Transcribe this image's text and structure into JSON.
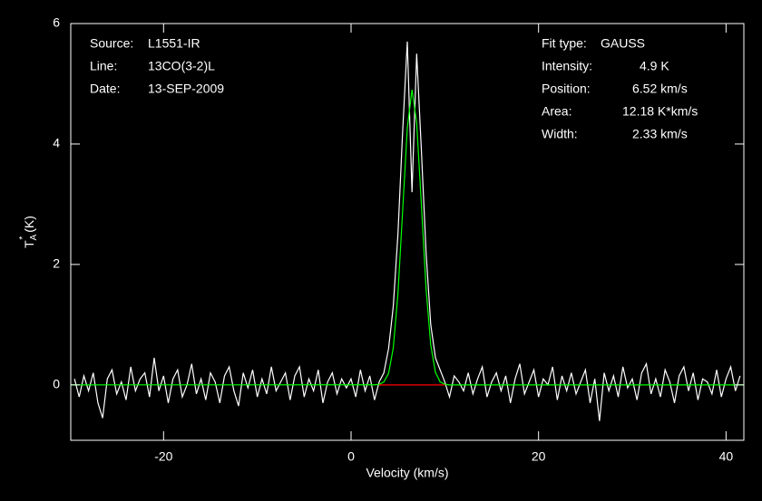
{
  "chart_data": {
    "type": "line",
    "xlabel": "Velocity (km/s)",
    "ylabel": {
      "main": "T",
      "sub": "A",
      "sup": "*",
      "unit": "(K)"
    },
    "xlim": [
      -29.9,
      41.9
    ],
    "ylim": [
      -0.92,
      6
    ],
    "xticks": [
      -20,
      0,
      20,
      40
    ],
    "yticks": [
      0,
      2,
      4,
      6
    ],
    "annotations_left": [
      {
        "label": "Source:",
        "value": "L1551-IR"
      },
      {
        "label": "Line:",
        "value": "13CO(3-2)L"
      },
      {
        "label": "Date:",
        "value": "13-SEP-2009"
      }
    ],
    "annotations_right": [
      {
        "label": "Fit type:",
        "value": "GAUSS"
      },
      {
        "label": "Intensity:",
        "value": "4.9 K"
      },
      {
        "label": "Position:",
        "value": "6.52 km/s"
      },
      {
        "label": "Area:",
        "value": "12.18 K*km/s"
      },
      {
        "label": "Width:",
        "value": "2.33 km/s"
      }
    ],
    "series": [
      {
        "color": "#ffffff",
        "x": [
          -29.5,
          -29,
          -28.5,
          -28,
          -27.5,
          -27,
          -26.5,
          -26,
          -25.5,
          -25,
          -24.5,
          -24,
          -23.5,
          -23,
          -22.5,
          -22,
          -21.5,
          -21,
          -20.5,
          -20,
          -19.5,
          -19,
          -18.5,
          -18,
          -17.5,
          -17,
          -16.5,
          -16,
          -15.5,
          -15,
          -14.5,
          -14,
          -13.5,
          -13,
          -12.5,
          -12,
          -11.5,
          -11,
          -10.5,
          -10,
          -9.5,
          -9,
          -8.5,
          -8,
          -7.5,
          -7,
          -6.5,
          -6,
          -5.5,
          -5,
          -4.5,
          -4,
          -3.5,
          -3,
          -2.5,
          -2,
          -1.5,
          -1,
          -0.5,
          0,
          0.5,
          1,
          1.5,
          2,
          2.5,
          3,
          3.5,
          4,
          4.5,
          5,
          5.5,
          6,
          6.5,
          7,
          7.5,
          8,
          8.5,
          9,
          9.5,
          10,
          10.5,
          11,
          11.5,
          12,
          12.5,
          13,
          13.5,
          14,
          14.5,
          15,
          15.5,
          16,
          16.5,
          17,
          17.5,
          18,
          18.5,
          19,
          19.5,
          20,
          20.5,
          21,
          21.5,
          22,
          22.5,
          23,
          23.5,
          24,
          24.5,
          25,
          25.5,
          26,
          26.5,
          27,
          27.5,
          28,
          28.5,
          29,
          29.5,
          30,
          30.5,
          31,
          31.5,
          32,
          32.5,
          33,
          33.5,
          34,
          34.5,
          35,
          35.5,
          36,
          36.5,
          37,
          37.5,
          38,
          38.5,
          39,
          39.5,
          40,
          40.5,
          41,
          41.5
        ],
        "values": [
          0.1,
          -0.2,
          0.15,
          -0.1,
          0.2,
          -0.3,
          -0.55,
          0.1,
          0.25,
          -0.15,
          0.05,
          -0.25,
          0.3,
          -0.1,
          0.1,
          0.2,
          -0.2,
          0.45,
          -0.1,
          0.15,
          -0.3,
          0.1,
          0.25,
          -0.2,
          0.0,
          0.35,
          -0.15,
          0.1,
          -0.25,
          0.2,
          0.05,
          -0.3,
          0.15,
          0.3,
          -0.1,
          -0.35,
          0.2,
          -0.05,
          0.25,
          -0.2,
          0.1,
          -0.15,
          0.3,
          -0.1,
          0.05,
          0.2,
          -0.25,
          0.15,
          0.3,
          -0.2,
          0.1,
          -0.1,
          0.25,
          -0.3,
          0.05,
          0.2,
          -0.15,
          0.1,
          -0.05,
          0.1,
          -0.2,
          0.25,
          -0.1,
          0.15,
          -0.25,
          0.05,
          0.2,
          0.6,
          1.3,
          2.5,
          4.2,
          5.7,
          3.2,
          5.5,
          3.9,
          2.2,
          1.0,
          0.45,
          0.25,
          0.05,
          -0.2,
          0.15,
          0.05,
          -0.1,
          0.2,
          -0.15,
          0.1,
          0.3,
          -0.2,
          0.05,
          0.2,
          -0.1,
          0.15,
          -0.3,
          0.1,
          0.35,
          -0.15,
          0.05,
          0.25,
          -0.2,
          0.1,
          0.0,
          0.3,
          -0.25,
          0.15,
          -0.1,
          0.2,
          -0.15,
          0.05,
          0.25,
          -0.3,
          0.1,
          -0.6,
          0.2,
          -0.1,
          0.15,
          -0.2,
          0.3,
          -0.05,
          0.1,
          -0.25,
          0.2,
          0.35,
          -0.15,
          0.1,
          -0.2,
          0.25,
          0.05,
          -0.3,
          0.15,
          0.3,
          -0.1,
          0.2,
          -0.25,
          0.1,
          0.05,
          -0.15,
          0.25,
          -0.2,
          0.1,
          0.3,
          -0.1,
          0.15
        ]
      },
      {
        "color": "#00ff00",
        "x": [
          -29.9,
          2.5,
          3,
          3.5,
          4,
          4.5,
          5,
          5.5,
          6,
          6.5,
          7,
          7.5,
          8,
          8.5,
          9,
          9.5,
          10,
          10.5,
          41.9
        ],
        "values": [
          0,
          0.001,
          0.009,
          0.05,
          0.19,
          0.61,
          1.51,
          2.88,
          4.27,
          4.9,
          4.35,
          3.0,
          1.6,
          0.66,
          0.21,
          0.05,
          0.01,
          0,
          0
        ]
      },
      {
        "color": "#ff0000",
        "x": [
          3,
          10
        ],
        "values": [
          0,
          0
        ]
      }
    ]
  }
}
